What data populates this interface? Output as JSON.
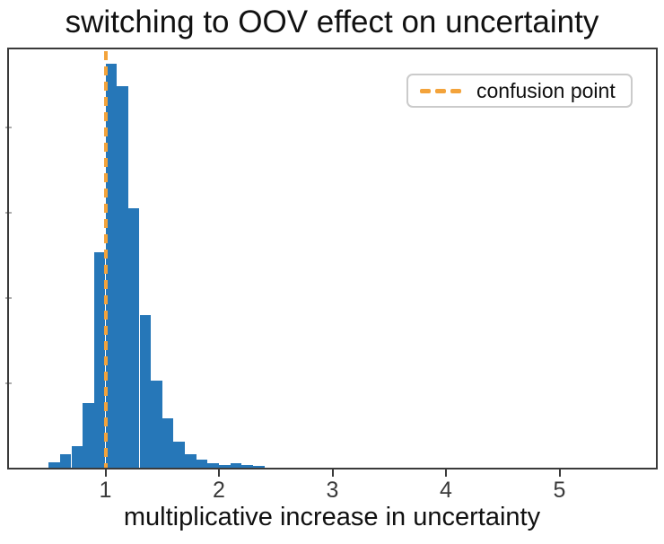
{
  "title": "switching to OOV effect on uncertainty",
  "xlabel": "multiplicative increase in uncertainty",
  "legend": {
    "label": "confusion point",
    "position": "upper right"
  },
  "colors": {
    "bar": "#2677b8",
    "confusion_line": "#f3a33b",
    "frame": "#3a3a3a",
    "title_text": "#111111",
    "tick_text": "#3a3a3a"
  },
  "chart_data": {
    "type": "bar",
    "subtype": "histogram",
    "title": "switching to OOV effect on uncertainty",
    "xlabel": "multiplicative increase in uncertainty",
    "ylabel": "",
    "bin_start": 0.5,
    "bin_width": 0.1,
    "bin_count": 19,
    "heights_relative_to_peak": [
      0.013,
      0.033,
      0.053,
      0.16,
      0.533,
      1.0,
      0.944,
      0.642,
      0.378,
      0.216,
      0.122,
      0.064,
      0.033,
      0.02,
      0.011,
      0.007,
      0.011,
      0.007,
      0.004
    ],
    "peak_bin_range": [
      1.0,
      1.1
    ],
    "xlim": [
      0.15,
      5.85
    ],
    "ylim_relative": [
      0,
      1.036
    ],
    "xticks": [
      {
        "value": 1,
        "label": "1"
      },
      {
        "value": 2,
        "label": "2"
      },
      {
        "value": 3,
        "label": "3"
      },
      {
        "value": 4,
        "label": "4"
      },
      {
        "value": 5,
        "label": "5"
      }
    ],
    "ytick_marks_unlabeled": 4,
    "grid": false,
    "legend_position": "upper right",
    "vline": {
      "x": 1.0,
      "style": "dashed",
      "color": "#f3a33b",
      "label": "confusion point"
    }
  }
}
